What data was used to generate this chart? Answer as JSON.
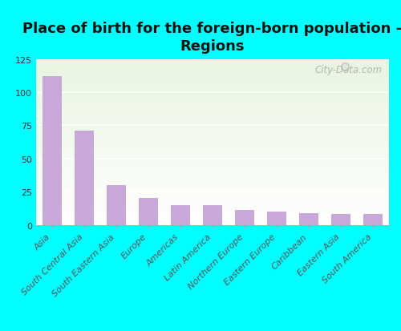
{
  "title": "Place of birth for the foreign-born population -\nRegions",
  "categories": [
    "Asia",
    "South Central Asia",
    "South Eastern Asia",
    "Europe",
    "Americas",
    "Latin America",
    "Northern Europe",
    "Eastern Europe",
    "Caribbean",
    "Eastern Asia",
    "South America"
  ],
  "values": [
    112,
    71,
    30,
    20,
    15,
    15,
    11,
    10,
    9,
    8,
    8
  ],
  "bar_color": "#c8a8d8",
  "background_color": "#00ffff",
  "plot_bg_top": "#e8f5e0",
  "plot_bg_bottom": "#ffffff",
  "ylim": [
    0,
    125
  ],
  "yticks": [
    0,
    25,
    50,
    75,
    100,
    125
  ],
  "title_fontsize": 13,
  "tick_label_fontsize": 8,
  "ytick_fontsize": 8,
  "watermark": "City-Data.com",
  "watermark_fontsize": 8.5,
  "grid_color": "#ffffff",
  "spine_color": "#aaaaaa"
}
